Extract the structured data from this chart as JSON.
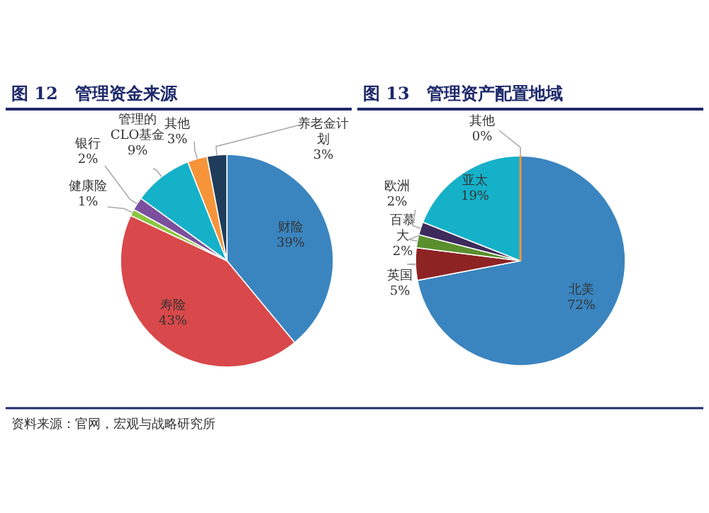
{
  "chart_data": [
    {
      "type": "pie",
      "title": "图 12　管理资金来源",
      "categories": [
        "财险",
        "寿险",
        "健康险",
        "银行",
        "管理的CLO基金",
        "其他",
        "养老金计划"
      ],
      "values": [
        39,
        43,
        1,
        2,
        9,
        3,
        3
      ],
      "value_labels": [
        "39%",
        "43%",
        "1%",
        "2%",
        "9%",
        "3%",
        "3%"
      ],
      "colors": [
        "#3a85c0",
        "#d9484a",
        "#8cc63f",
        "#7b4f9d",
        "#15b1c9",
        "#f7943a",
        "#1f3c5a"
      ],
      "data_labels": true,
      "annotations": [
        "资料来源：官网，宏观与战略研究所"
      ]
    },
    {
      "type": "pie",
      "title": "图 13　管理资产配置地域",
      "categories": [
        "北美",
        "英国",
        "百慕大",
        "欧洲",
        "亚太",
        "其他"
      ],
      "values": [
        72,
        5,
        2,
        2,
        19,
        0
      ],
      "value_labels": [
        "72%",
        "5%",
        "2%",
        "2%",
        "19%",
        "0%"
      ],
      "colors": [
        "#3a85c0",
        "#8e2324",
        "#5b8f2e",
        "#3e2b5e",
        "#15b1c9",
        "#f7943a"
      ],
      "data_labels": true
    }
  ]
}
